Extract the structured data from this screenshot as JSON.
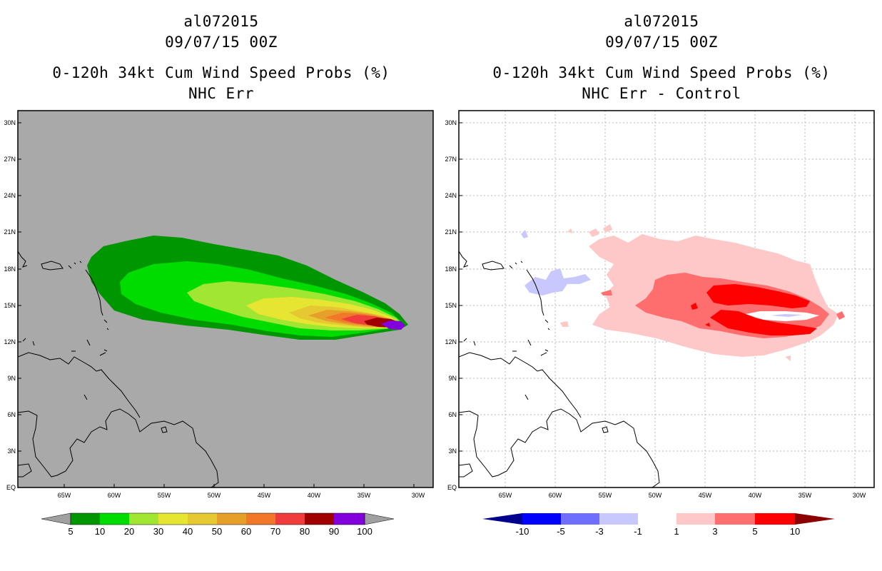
{
  "panels": [
    {
      "storm_id": "al072015",
      "datetime": "09/07/15 00Z",
      "product": "0-120h 34kt Cum Wind Speed Probs (%)",
      "subtitle": "NHC Err",
      "background_color": "#a9a9a9"
    },
    {
      "storm_id": "al072015",
      "datetime": "09/07/15 00Z",
      "product": "0-120h 34kt Cum Wind Speed Probs (%)",
      "subtitle": "NHC Err - Control",
      "background_color": "#ffffff"
    }
  ],
  "map": {
    "lat_labels": [
      "30N",
      "27N",
      "24N",
      "21N",
      "18N",
      "15N",
      "12N",
      "9N",
      "6N",
      "3N",
      "EQ"
    ],
    "lon_labels": [
      "65W",
      "60W",
      "55W",
      "50W",
      "45W",
      "40W",
      "35W",
      "30W"
    ],
    "extent": {
      "lon_min": -69,
      "lon_max": -28.5,
      "lat_min": 0,
      "lat_max": 31
    }
  },
  "legends": [
    {
      "labels": [
        "5",
        "10",
        "20",
        "30",
        "40",
        "50",
        "60",
        "70",
        "80",
        "90",
        "100"
      ],
      "colors": [
        "#009600",
        "#00dc00",
        "#a0e632",
        "#e6e632",
        "#e6c832",
        "#e6a02a",
        "#f07828",
        "#f03c3c",
        "#a00000",
        "#8200dc"
      ],
      "end_color": "#a0a0a0"
    },
    {
      "labels": [
        "-10",
        "-5",
        "-3",
        "-1",
        "1",
        "3",
        "5",
        "10"
      ],
      "colors": [
        "#0000ff",
        "#6e6eff",
        "#c8c8ff",
        "#ffffff",
        "#ffc8c8",
        "#ff6e6e",
        "#ff0000"
      ],
      "end_left": "#00008c",
      "end_right": "#8c0000"
    }
  ],
  "colors": {
    "green_dark": "#009600",
    "green": "#00dc00",
    "green_light": "#a0e632",
    "yellow": "#e6e632",
    "yellow_orange": "#e6c832",
    "orange": "#e6a02a",
    "orange_red": "#f07828",
    "red": "#f03c3c",
    "dark_red": "#a00000",
    "purple": "#8200dc",
    "pink_light": "#ffc8c8",
    "pink": "#ff6e6e",
    "red_strong": "#ff0000",
    "blue_light": "#c8c8ff"
  }
}
